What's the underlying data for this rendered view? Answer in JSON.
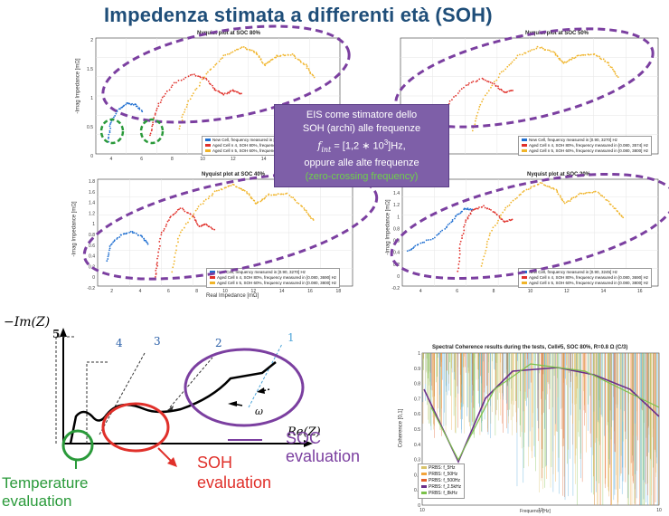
{
  "slide_title": "Impedenza stimata a differenti età (SOH)",
  "nyquist_panels": [
    {
      "title": "Nyquist plot at SOC 80%",
      "ylabel": "-Imag Impedance [mΩ]",
      "xlabel": "Real Impedance [mΩ]",
      "legend": [
        "New Cell, frequency measured in [0.90, 3270] Hz",
        "Aged Cell n 4, SOH 80%, frequency measured in [0.080, 3690] Hz",
        "Aged Cell n 5, SOH 60%, frequency measured in [0.080, 3800] Hz"
      ]
    },
    {
      "title": "Nyquist plot at SOC 50%",
      "ylabel": "-Imag Impedance [mΩ]",
      "xlabel": "Real Impedance [mΩ]",
      "legend": [
        "New Cell, frequency measured in [0.90, 3270] Hz",
        "Aged Cell n 4, SOH 80%, frequency measured in [0.080, 3574] Hz",
        "Aged Cell n 5, SOH 60%, frequency measured in [0.080, 3800] Hz"
      ]
    },
    {
      "title": "Nyquist plot at SOC 40%",
      "ylabel": "-Imag Impedance [mΩ]",
      "xlabel": "Real Impedance [mΩ]",
      "legend": [
        "New Cell, frequency measured in [0.90, 3270] Hz",
        "Aged Cell n 4, SOH 80%, frequency measured in [0.080, 3690] Hz",
        "Aged Cell n 5, SOH 60%, frequency measured in [0.080, 3800] Hz"
      ]
    },
    {
      "title": "Nyquist plot at SOC 20%",
      "ylabel": "-Imag Impedance [mΩ]",
      "xlabel": "Real Impedance [mΩ]",
      "legend": [
        "New Cell, frequency measured in [0.90, 3245] Hz",
        "Aged Cell n 4, SOH 80%, frequency measured in [0.080, 3690] Hz",
        "Aged Cell n 5, SOH 60%, frequency measured in [0.080, 3800] Hz"
      ]
    }
  ],
  "callout": {
    "line1": "EIS come stimatore dello",
    "line2": "SOH (archi) alle frequenze",
    "line3a": "f",
    "line3sub": "int",
    "line3b": " = [1,2 ∗ 10",
    "line3sup": "3",
    "line3c": "]Hz,",
    "line4": "oppure alle alte frequenze",
    "line5": "(zero-crossing frequency)"
  },
  "diagram": {
    "yaxis": "−Im(Z)",
    "xaxis": "Re(Z)",
    "numbers": [
      "5",
      "4",
      "3",
      "2",
      "1"
    ],
    "omega": "ω",
    "soc_label": "SOC\nevaluation",
    "soh_label": "SOH\nevaluation",
    "temp_label": "Temperature\nevaluation",
    "colors": {
      "soc": "#7b3fa0",
      "soh": "#e0302a",
      "temp": "#2a9a3a"
    }
  },
  "coherence": {
    "title": "Spectral Coherence results during the tests, Cell#5, SOC 80%, R=0.8 Ω (C/3)",
    "ylabel": "Coherence [0,1]",
    "xlabel": "Frequency [Hz]",
    "legend": [
      "PRBS: f_5Hz",
      "PRBS: f_50Hz",
      "PRBS: f_500Hz",
      "PRBS: f_2.5kHz",
      "PRBS: f_8kHz"
    ],
    "yticks": [
      "1",
      "0.9",
      "0.8",
      "0.7",
      "0.6",
      "0.5",
      "0.4",
      "0.3",
      "0.2",
      "0.1",
      "0"
    ],
    "xticks": [
      "10",
      "10",
      "10"
    ]
  },
  "nyquist_axes": {
    "p1_y": [
      "2",
      "1.5",
      "1",
      "0.5",
      "0"
    ],
    "p3_y": [
      "1.8",
      "1.6",
      "1.4",
      "1.2",
      "1",
      "0.8",
      "0.6",
      "0.4",
      "0.2",
      "0",
      "-0.2"
    ],
    "p3_x": [
      "2",
      "4",
      "6",
      "8",
      "10",
      "12",
      "14",
      "16",
      "18"
    ],
    "p4_y": [
      "1.6",
      "1.4",
      "1.2",
      "1",
      "0.8",
      "0.6",
      "0.4",
      "0.2",
      "0",
      "-0.2"
    ],
    "p4_x": [
      "4",
      "6",
      "8",
      "10",
      "12",
      "14",
      "16"
    ],
    "p1_x": [
      "4",
      "6",
      "8",
      "10",
      "12",
      "14",
      "16",
      "18"
    ]
  },
  "series_colors": {
    "new": "#1f6fd1",
    "aged4": "#e0302a",
    "aged5": "#f0b429"
  }
}
